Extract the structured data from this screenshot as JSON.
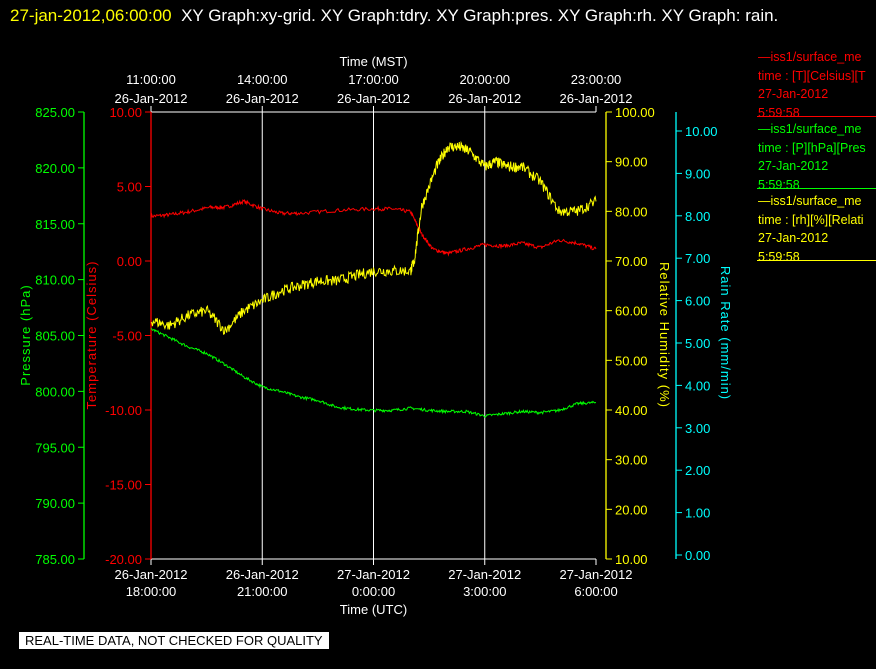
{
  "header": {
    "date_text": "27-jan-2012,06:00:00",
    "graphs_text": "XY Graph:xy-grid.  XY Graph:tdry.  XY Graph:pres.  XY Graph:rh.  XY Graph: rain."
  },
  "colors": {
    "temperature": "#ff0000",
    "pressure": "#00ff00",
    "humidity": "#ffff00",
    "rain": "#00ffff",
    "grid": "#ffffff"
  },
  "legend": [
    {
      "line": "—iss1/surface_me",
      "units": "time : [T][Celsius][T",
      "date": "27-Jan-2012",
      "time": "5:59:58",
      "color": "#ff0000"
    },
    {
      "line": "—iss1/surface_me",
      "units": "time : [P][hPa][Pres",
      "date": "27-Jan-2012",
      "time": "5:59:58",
      "color": "#00ff00"
    },
    {
      "line": "—iss1/surface_me",
      "units": "time : [rh][%][Relati",
      "date": "27-Jan-2012",
      "time": "5:59:58",
      "color": "#ffff00"
    }
  ],
  "footer_badge": "REAL-TIME DATA, NOT CHECKED FOR QUALITY",
  "chart_data": {
    "type": "line",
    "grid": true,
    "top_axis": {
      "label": "Time (MST)",
      "ticks": [
        {
          "time": "11:00:00",
          "date": "26-Jan-2012"
        },
        {
          "time": "14:00:00",
          "date": "26-Jan-2012"
        },
        {
          "time": "17:00:00",
          "date": "26-Jan-2012"
        },
        {
          "time": "20:00:00",
          "date": "26-Jan-2012"
        },
        {
          "time": "23:00:00",
          "date": "26-Jan-2012"
        }
      ]
    },
    "bottom_axis": {
      "label": "Time (UTC)",
      "ticks": [
        {
          "date": "26-Jan-2012",
          "time": "18:00:00"
        },
        {
          "date": "26-Jan-2012",
          "time": "21:00:00"
        },
        {
          "date": "27-Jan-2012",
          "time": "0:00:00"
        },
        {
          "date": "27-Jan-2012",
          "time": "3:00:00"
        },
        {
          "date": "27-Jan-2012",
          "time": "6:00:00"
        }
      ]
    },
    "x_unit": "hours UTC",
    "xlim": [
      18,
      30
    ],
    "axes": {
      "pressure": {
        "label": "Pressure (hPa)",
        "ylim": [
          785,
          825
        ],
        "ticks": [
          "825.00",
          "820.00",
          "815.00",
          "810.00",
          "805.00",
          "800.00",
          "795.00",
          "790.00",
          "785.00"
        ]
      },
      "temperature": {
        "label": "Temperature (Celsius)",
        "ylim": [
          -20,
          10
        ],
        "ticks": [
          "10.00",
          "5.00",
          "0.00",
          "-5.00",
          "-10.00",
          "-15.00",
          "-20.00"
        ]
      },
      "humidity": {
        "label": "Relative Humidity (%)",
        "ylim": [
          10,
          100
        ],
        "ticks": [
          "100.00",
          "90.00",
          "80.00",
          "70.00",
          "60.00",
          "50.00",
          "40.00",
          "30.00",
          "20.00",
          "10.00"
        ]
      },
      "rain": {
        "label": "Rain Rate (mm/min)",
        "ylim": [
          0,
          10.5
        ],
        "ticks": [
          "10.00",
          "9.00",
          "8.00",
          "7.00",
          "6.00",
          "5.00",
          "4.00",
          "3.00",
          "2.00",
          "1.00",
          "0.00"
        ]
      }
    },
    "series": [
      {
        "axis": "temperature",
        "x": [
          18.0,
          18.5,
          19.0,
          19.6,
          20.0,
          20.5,
          21.0,
          21.5,
          22.0,
          23.0,
          24.0,
          24.5,
          25.0,
          25.3,
          25.6,
          26.0,
          26.5,
          27.0,
          27.5,
          28.0,
          28.5,
          29.0,
          29.5,
          30.0
        ],
        "y": [
          3.0,
          3.1,
          3.3,
          3.6,
          3.6,
          4.0,
          3.5,
          3.2,
          3.2,
          3.4,
          3.5,
          3.5,
          3.3,
          1.8,
          0.8,
          0.5,
          0.8,
          1.1,
          1.0,
          1.2,
          0.9,
          1.4,
          1.2,
          0.8
        ]
      },
      {
        "axis": "pressure",
        "x": [
          18.0,
          18.5,
          19.0,
          19.5,
          20.0,
          20.5,
          21.0,
          21.5,
          22.0,
          22.5,
          23.0,
          23.5,
          24.0,
          24.5,
          25.0,
          25.5,
          26.0,
          26.5,
          27.0,
          27.5,
          28.0,
          28.5,
          29.0,
          29.5,
          30.0
        ],
        "y": [
          805.6,
          804.8,
          804.0,
          803.4,
          802.4,
          801.3,
          800.4,
          800.0,
          799.5,
          799.2,
          798.6,
          798.4,
          798.3,
          798.3,
          798.5,
          798.3,
          798.2,
          798.2,
          797.8,
          798.0,
          798.2,
          798.1,
          798.3,
          798.9,
          799.0
        ]
      },
      {
        "axis": "humidity",
        "x": [
          18.0,
          18.5,
          19.0,
          19.5,
          20.0,
          20.5,
          21.0,
          21.5,
          22.0,
          22.5,
          23.0,
          23.5,
          24.0,
          24.5,
          25.0,
          25.1,
          25.3,
          25.7,
          26.0,
          26.3,
          26.6,
          27.0,
          27.3,
          27.6,
          28.0,
          28.5,
          29.0,
          29.5,
          30.0
        ],
        "y": [
          58,
          57,
          59,
          60,
          56,
          60,
          62,
          64,
          65,
          66,
          66,
          67,
          68,
          68,
          68,
          70,
          81,
          89,
          93,
          93,
          92,
          89,
          90,
          89,
          89,
          86,
          80,
          80,
          82
        ]
      }
    ]
  }
}
